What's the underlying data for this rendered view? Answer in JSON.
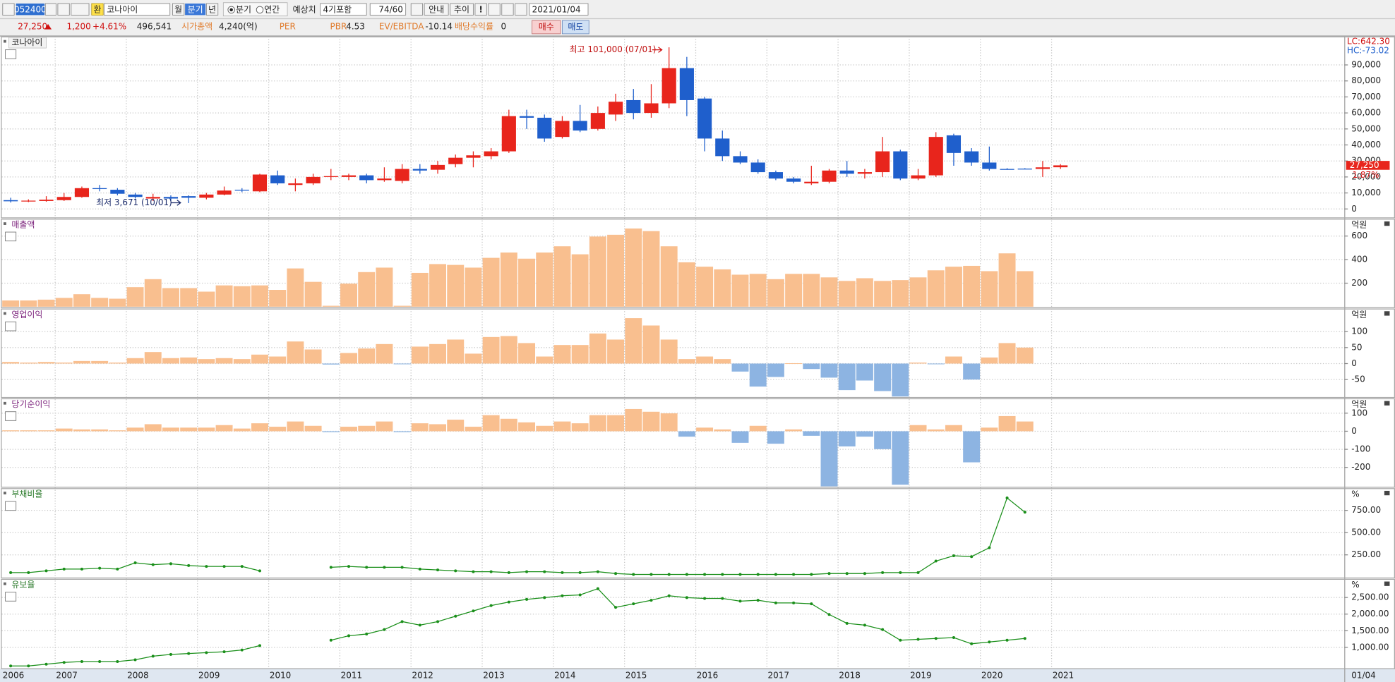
{
  "toolbar": {
    "code": "052400",
    "currency": "환",
    "name": "코나아이",
    "periods": [
      "월",
      "분기",
      "년"
    ],
    "radios": [
      "분기",
      "연간"
    ],
    "estimate_label": "예상치",
    "estimate_option": "4기포함",
    "count": "74/60",
    "buttons": [
      "안내",
      "추이",
      "!"
    ],
    "date": "2021/01/04"
  },
  "quote": {
    "price": "27,250",
    "change": "1,200",
    "change_pct": "+4.61%",
    "volume": "496,541",
    "market_cap_label": "시가총액",
    "market_cap": "4,240(억)",
    "per_label": "PER",
    "pbr_label": "PBR",
    "pbr": "4.53",
    "ev_label": "EV/EBITDA",
    "ev": "-10.14",
    "dividend_label": "배당수익률",
    "dividend": "0",
    "buy": "매수",
    "sell": "매도"
  },
  "chart_data": [
    {
      "type": "candlestick",
      "title": "코나아이",
      "up_color": "#e8251c",
      "down_color": "#1f5fcc",
      "open": [
        5500,
        4800,
        5000,
        5500,
        7500,
        13000,
        12000,
        9000,
        6500,
        7500,
        8000,
        7000,
        9000,
        12000,
        11000,
        21000,
        15000,
        16000,
        20000,
        20000,
        21000,
        18000,
        17500,
        25000,
        24500,
        28000,
        32000,
        33000,
        36000,
        58000,
        57000,
        45000,
        55000,
        50000,
        59000,
        68000,
        60000,
        66000,
        88000,
        69000,
        44000,
        33000,
        29000,
        23000,
        19000,
        16000,
        17000,
        24000,
        22000,
        23000,
        36000,
        19000,
        21000,
        46000,
        36000,
        29000,
        25000,
        25200,
        25000,
        26050
      ],
      "high": [
        7000,
        6000,
        8000,
        10000,
        14000,
        15000,
        13000,
        10000,
        9500,
        8500,
        8500,
        10000,
        14000,
        13000,
        22000,
        24000,
        19000,
        22000,
        25000,
        22000,
        22000,
        26000,
        28000,
        28000,
        30000,
        34000,
        36000,
        38000,
        62000,
        62000,
        59000,
        58000,
        65000,
        64000,
        72000,
        75000,
        78000,
        101000,
        95000,
        70000,
        49000,
        36000,
        31000,
        24000,
        20000,
        27000,
        25000,
        30000,
        25000,
        45000,
        37000,
        25000,
        48000,
        47000,
        38000,
        39000,
        25500,
        25500,
        30000,
        28000
      ],
      "low": [
        4000,
        4300,
        4500,
        5000,
        7000,
        11000,
        8500,
        6500,
        5000,
        5000,
        3671,
        6000,
        8500,
        10500,
        10500,
        15000,
        11000,
        15000,
        18000,
        18000,
        16000,
        17000,
        16000,
        22000,
        22000,
        26000,
        26000,
        31000,
        35000,
        50000,
        42000,
        44000,
        48000,
        49000,
        55000,
        56000,
        57000,
        63000,
        58000,
        36000,
        30000,
        28000,
        22000,
        18000,
        16000,
        15000,
        16000,
        20000,
        19000,
        20000,
        18000,
        18000,
        20000,
        27000,
        27000,
        24000,
        24500,
        24800,
        20000,
        25000
      ],
      "close": [
        4800,
        5200,
        5800,
        7500,
        13000,
        12500,
        9500,
        7500,
        7500,
        6500,
        7000,
        9000,
        11500,
        11500,
        21500,
        16000,
        16000,
        20000,
        20500,
        21000,
        18000,
        19000,
        25000,
        24000,
        27500,
        32000,
        33500,
        36000,
        58000,
        57000,
        44000,
        55000,
        49000,
        60000,
        67000,
        60000,
        66000,
        88000,
        68000,
        44000,
        33000,
        29000,
        23000,
        19000,
        17000,
        17000,
        24000,
        22000,
        23000,
        36000,
        19000,
        21000,
        45000,
        35000,
        29000,
        25000,
        24800,
        25000,
        26000,
        27250
      ],
      "ylim": [
        -5556,
        107778
      ],
      "yticks": [
        0,
        {
          "value": 10000,
          "label": "10,000"
        },
        {
          "value": 20000,
          "label": "20,000"
        },
        {
          "value": 30000,
          "label": "30,000"
        },
        {
          "value": 40000,
          "label": "40,000"
        },
        {
          "value": 50000,
          "label": "50,000"
        },
        {
          "value": 60000,
          "label": "60,000"
        },
        {
          "value": 70000,
          "label": "70,000"
        },
        {
          "value": 80000,
          "label": "80,000"
        },
        {
          "value": 90000,
          "label": "90,000"
        }
      ],
      "annotations": [
        "최고 101,000 (07/01)",
        "최저 3,671 (10/01)"
      ],
      "lc_label": "LC:642.30",
      "hc_label": "HC:-73.02",
      "last_label": "27,250",
      "last_pct": "1.87%"
    },
    {
      "type": "bar",
      "title": "매출액",
      "unit": "억원",
      "pos_color": "#f9bf8f",
      "neg_color": "#8db4e2",
      "values": [
        53,
        53,
        60,
        75,
        106,
        75,
        68,
        166,
        234,
        158,
        158,
        128,
        181,
        174,
        181,
        143,
        325,
        211,
        8,
        196,
        294,
        332,
        8,
        287,
        362,
        355,
        332,
        415,
        460,
        408,
        460,
        513,
        445,
        596,
        611,
        664,
        642,
        513,
        377,
        340,
        317,
        272,
        279,
        234,
        279,
        279,
        249,
        219,
        242,
        219,
        226,
        249,
        309,
        340,
        347,
        302,
        453,
        302,
        null,
        null
      ],
      "ylim": [
        -8,
        747
      ],
      "yticks": [
        200,
        400,
        600
      ]
    },
    {
      "type": "bar",
      "title": "영업이익",
      "unit": "억원",
      "pos_color": "#f9bf8f",
      "neg_color": "#8db4e2",
      "values": [
        5,
        3,
        5,
        3,
        8,
        8,
        3,
        17,
        36,
        17,
        19,
        14,
        17,
        14,
        28,
        22,
        69,
        44,
        -3,
        33,
        47,
        61,
        -2,
        53,
        61,
        75,
        31,
        83,
        86,
        64,
        22,
        58,
        58,
        94,
        75,
        142,
        119,
        75,
        14,
        22,
        14,
        -25,
        -72,
        -42,
        1,
        -17,
        -44,
        -83,
        -53,
        -86,
        -103,
        3,
        -2,
        22,
        -50,
        19,
        64,
        50,
        null,
        null
      ],
      "ylim": [
        -106,
        172
      ],
      "yticks": [
        100,
        50,
        0,
        -50
      ]
    },
    {
      "type": "bar",
      "title": "당기순이익",
      "unit": "억원",
      "pos_color": "#f9bf8f",
      "neg_color": "#8db4e2",
      "values": [
        5,
        5,
        5,
        15,
        10,
        10,
        5,
        20,
        39,
        20,
        20,
        20,
        34,
        15,
        44,
        25,
        54,
        30,
        -5,
        25,
        30,
        54,
        -5,
        44,
        39,
        64,
        25,
        89,
        69,
        49,
        30,
        54,
        44,
        89,
        89,
        123,
        108,
        99,
        -30,
        20,
        10,
        -64,
        30,
        -69,
        10,
        -25,
        -305,
        -84,
        -30,
        -99,
        -296,
        34,
        10,
        34,
        -172,
        20,
        84,
        54,
        null,
        null
      ],
      "ylim": [
        -310,
        182
      ],
      "yticks": [
        100,
        0,
        -100,
        -200
      ]
    },
    {
      "type": "line",
      "title": "부채비율",
      "unit": "%",
      "color": "#1a8f1a",
      "values": [
        50,
        50,
        70,
        90,
        90,
        100,
        90,
        160,
        140,
        150,
        130,
        120,
        120,
        120,
        70,
        null,
        null,
        null,
        110,
        120,
        110,
        110,
        110,
        90,
        80,
        70,
        60,
        60,
        50,
        60,
        60,
        50,
        50,
        60,
        40,
        30,
        30,
        30,
        30,
        30,
        30,
        30,
        30,
        30,
        30,
        30,
        40,
        40,
        40,
        50,
        50,
        50,
        180,
        240,
        230,
        330,
        890,
        730,
        null,
        null
      ],
      "ylim": [
        -10,
        1000
      ],
      "yticks": [
        {
          "value": 250,
          "label": "250.00"
        },
        {
          "value": 500,
          "label": "500.00"
        },
        {
          "value": 750,
          "label": "750.00"
        }
      ]
    },
    {
      "type": "line",
      "title": "유보율",
      "unit": "%",
      "color": "#1a8f1a",
      "values": [
        439,
        439,
        492,
        545,
        572,
        572,
        572,
        626,
        733,
        786,
        813,
        840,
        866,
        920,
        1053,
        null,
        null,
        null,
        1214,
        1348,
        1401,
        1535,
        1775,
        1668,
        1775,
        1936,
        2096,
        2257,
        2364,
        2444,
        2497,
        2551,
        2578,
        2765,
        2203,
        2310,
        2417,
        2551,
        2497,
        2471,
        2471,
        2390,
        2417,
        2337,
        2337,
        2310,
        1989,
        1722,
        1668,
        1535,
        1214,
        1241,
        1267,
        1294,
        1107,
        1160,
        1214,
        1267,
        null,
        null
      ],
      "ylim": [
        358,
        3061
      ],
      "yticks": [
        {
          "value": 1000,
          "label": "1,000.00"
        },
        {
          "value": 1500,
          "label": "1,500.00"
        },
        {
          "value": 2000,
          "label": "2,000.00"
        },
        {
          "value": 2500,
          "label": "2,500.00"
        }
      ],
      "categories": [
        "2006",
        null,
        null,
        "2007",
        null,
        null,
        null,
        "2008",
        null,
        null,
        null,
        "2009",
        null,
        null,
        null,
        "2010",
        null,
        null,
        null,
        "2011",
        null,
        null,
        null,
        "2012",
        null,
        null,
        null,
        "2013",
        null,
        null,
        null,
        "2014",
        null,
        null,
        null,
        "2015",
        null,
        null,
        null,
        "2016",
        null,
        null,
        null,
        "2017",
        null,
        null,
        null,
        "2018",
        null,
        null,
        null,
        "2019",
        null,
        null,
        null,
        "2020",
        null,
        null,
        null,
        "2021"
      ],
      "x_end_label": "01/04"
    }
  ]
}
